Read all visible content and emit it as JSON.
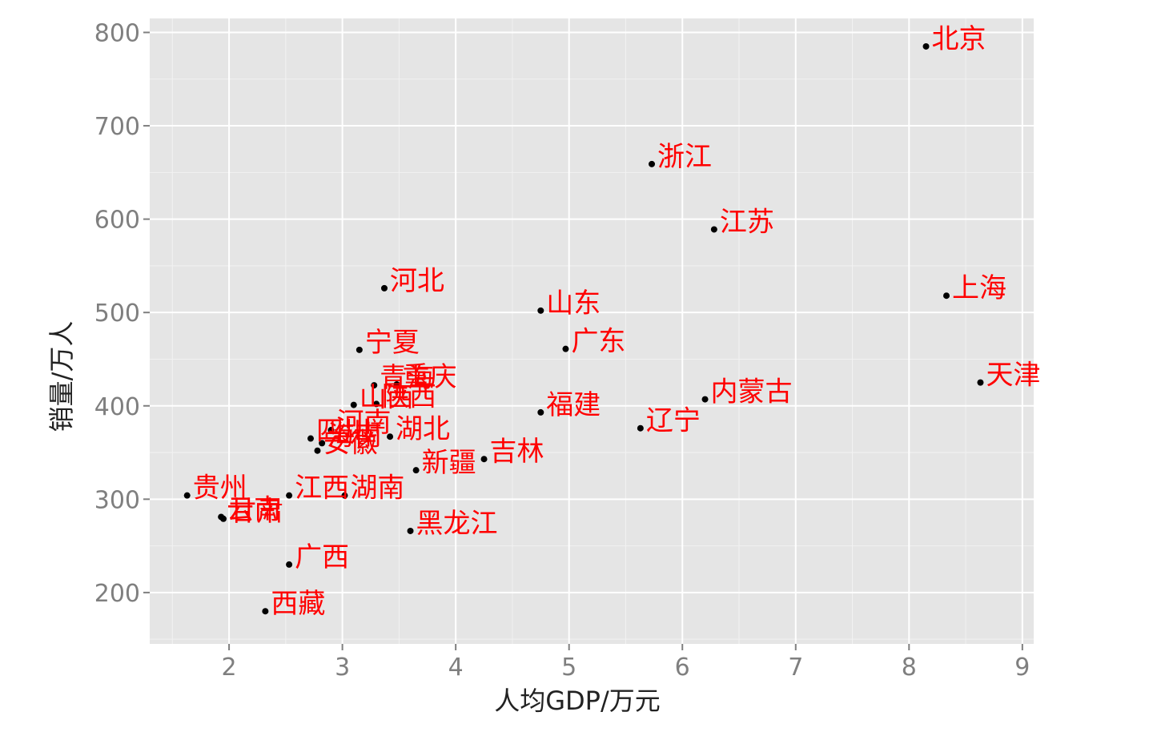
{
  "chart_data": {
    "type": "scatter",
    "xlabel": "人均GDP/万元",
    "ylabel": "销量/万人",
    "xlim": [
      1.3,
      9.1
    ],
    "ylim": [
      145,
      815
    ],
    "x_ticks": [
      2,
      3,
      4,
      5,
      6,
      7,
      8,
      9
    ],
    "y_ticks": [
      200,
      300,
      400,
      500,
      600,
      700,
      800
    ],
    "grid": true,
    "panel_background": "#e5e5e5",
    "grid_color": "#ffffff",
    "point_color": "#000000",
    "label_color": "#ff0000",
    "points": [
      {
        "label": "北京",
        "x": 8.15,
        "y": 785
      },
      {
        "label": "浙江",
        "x": 5.73,
        "y": 659
      },
      {
        "label": "江苏",
        "x": 6.28,
        "y": 589
      },
      {
        "label": "上海",
        "x": 8.33,
        "y": 518
      },
      {
        "label": "河北",
        "x": 3.37,
        "y": 526
      },
      {
        "label": "山东",
        "x": 4.75,
        "y": 502
      },
      {
        "label": "广东",
        "x": 4.97,
        "y": 461
      },
      {
        "label": "宁夏",
        "x": 3.15,
        "y": 460
      },
      {
        "label": "天津",
        "x": 8.63,
        "y": 425
      },
      {
        "label": "内蒙古",
        "x": 6.2,
        "y": 407
      },
      {
        "label": "青海",
        "x": 3.28,
        "y": 422
      },
      {
        "label": "重庆",
        "x": 3.48,
        "y": 423
      },
      {
        "label": "山西",
        "x": 3.1,
        "y": 401
      },
      {
        "label": "陕西",
        "x": 3.3,
        "y": 402
      },
      {
        "label": "福建",
        "x": 4.75,
        "y": 393
      },
      {
        "label": "辽宁",
        "x": 5.63,
        "y": 376
      },
      {
        "label": "四川",
        "x": 2.72,
        "y": 365
      },
      {
        "label": "河南",
        "x": 2.9,
        "y": 374
      },
      {
        "label": "海南",
        "x": 2.82,
        "y": 360
      },
      {
        "label": "湖北",
        "x": 3.42,
        "y": 367
      },
      {
        "label": "安徽",
        "x": 2.78,
        "y": 352
      },
      {
        "label": "吉林",
        "x": 4.25,
        "y": 343
      },
      {
        "label": "新疆",
        "x": 3.65,
        "y": 331
      },
      {
        "label": "贵州",
        "x": 1.63,
        "y": 304
      },
      {
        "label": "江西",
        "x": 2.53,
        "y": 304
      },
      {
        "label": "湖南",
        "x": 3.02,
        "y": 304
      },
      {
        "label": "云南",
        "x": 1.93,
        "y": 281
      },
      {
        "label": "甘肃",
        "x": 1.95,
        "y": 279
      },
      {
        "label": "黑龙江",
        "x": 3.6,
        "y": 266
      },
      {
        "label": "广西",
        "x": 2.53,
        "y": 230
      },
      {
        "label": "西藏",
        "x": 2.32,
        "y": 180
      }
    ]
  }
}
